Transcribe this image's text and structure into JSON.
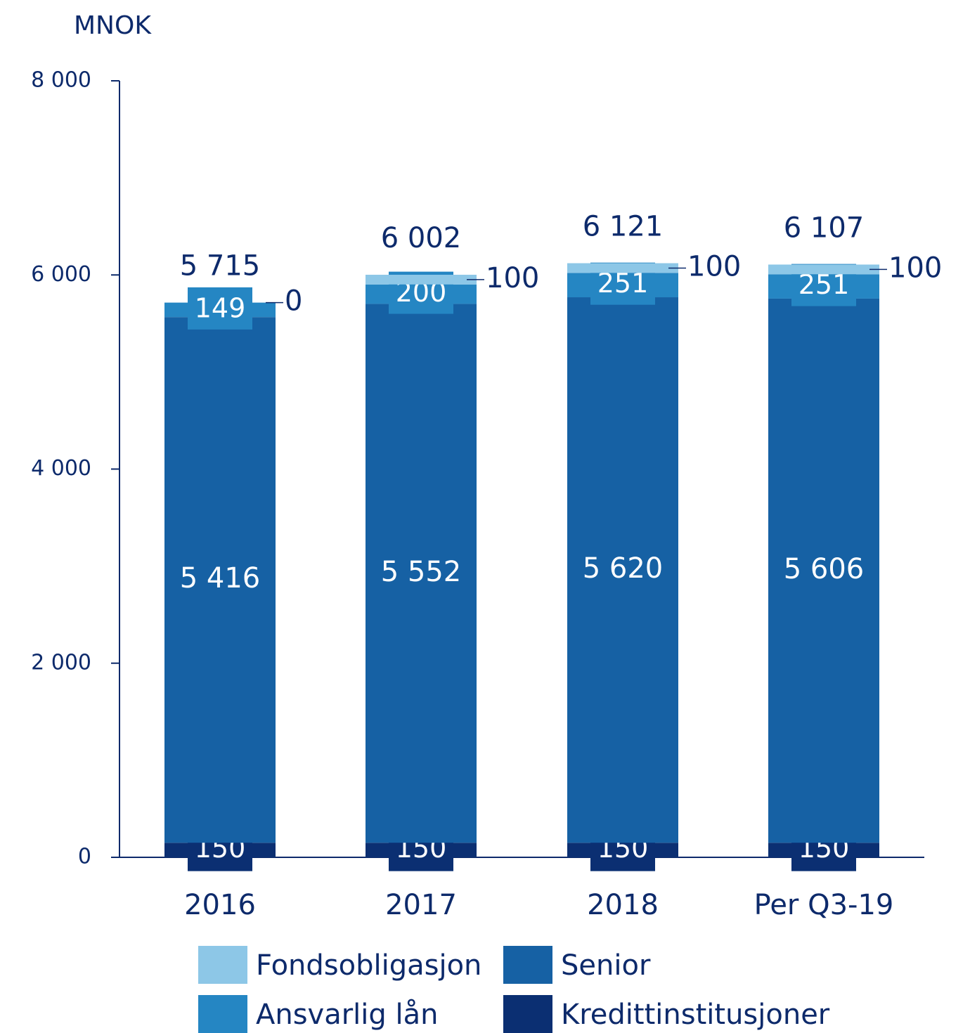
{
  "chart_data": {
    "type": "stacked_bar",
    "y_label": "MNOK",
    "categories": [
      "2016",
      "2017",
      "2018",
      "Per Q3-19"
    ],
    "series": [
      {
        "name": "Kredittinstitusjoner",
        "color": "#0b2f72",
        "values": [
          150,
          150,
          150,
          150
        ],
        "label_color": "#ffffff"
      },
      {
        "name": "Senior",
        "color": "#1661a4",
        "values": [
          5416,
          5552,
          5620,
          5606
        ],
        "value_labels": [
          "5 416",
          "5 552",
          "5 620",
          "5 606"
        ],
        "label_color": "#ffffff"
      },
      {
        "name": "Ansvarlig lån",
        "color": "#2586c3",
        "values": [
          149,
          200,
          251,
          251
        ],
        "label_color": "#ffffff"
      },
      {
        "name": "Fondsobligasjon",
        "color": "#8dc7e7",
        "values": [
          0,
          100,
          100,
          100
        ],
        "label_color": "#0d2a6b"
      }
    ],
    "totals": [
      5715,
      6002,
      6121,
      6107
    ],
    "total_labels": [
      "5 715",
      "6 002",
      "6 121",
      "6 107"
    ],
    "ylim": [
      0,
      8000
    ],
    "yticks": [
      0,
      {
        "value": 2000,
        "label": "2 000"
      },
      {
        "value": 4000,
        "label": "4 000"
      },
      {
        "value": 6000,
        "label": "6 000"
      },
      {
        "value": 8000,
        "label": "8 000"
      }
    ]
  }
}
